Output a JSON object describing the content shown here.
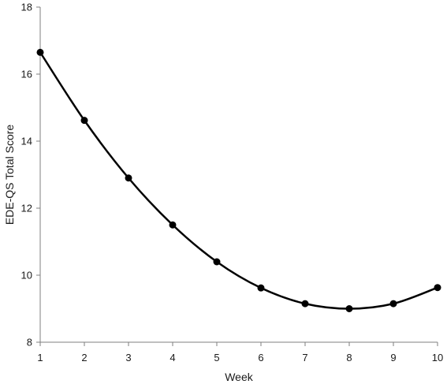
{
  "chart_data": {
    "type": "line",
    "title": "",
    "xlabel": "Week",
    "ylabel": "EDE-QS Total Score",
    "xlim": [
      1,
      10
    ],
    "ylim": [
      8,
      18
    ],
    "x_ticks": [
      1,
      2,
      3,
      4,
      5,
      6,
      7,
      8,
      9,
      10
    ],
    "y_ticks": [
      8,
      10,
      12,
      14,
      16,
      18
    ],
    "grid": false,
    "legend": "none",
    "series": [
      {
        "x": [
          1,
          2,
          3,
          4,
          5,
          6,
          7,
          8,
          9,
          10
        ],
        "values": [
          16.65,
          14.62,
          12.9,
          11.5,
          10.4,
          9.62,
          9.15,
          9.0,
          9.15,
          9.63
        ],
        "color": "#000000",
        "marker": "circle"
      }
    ]
  }
}
